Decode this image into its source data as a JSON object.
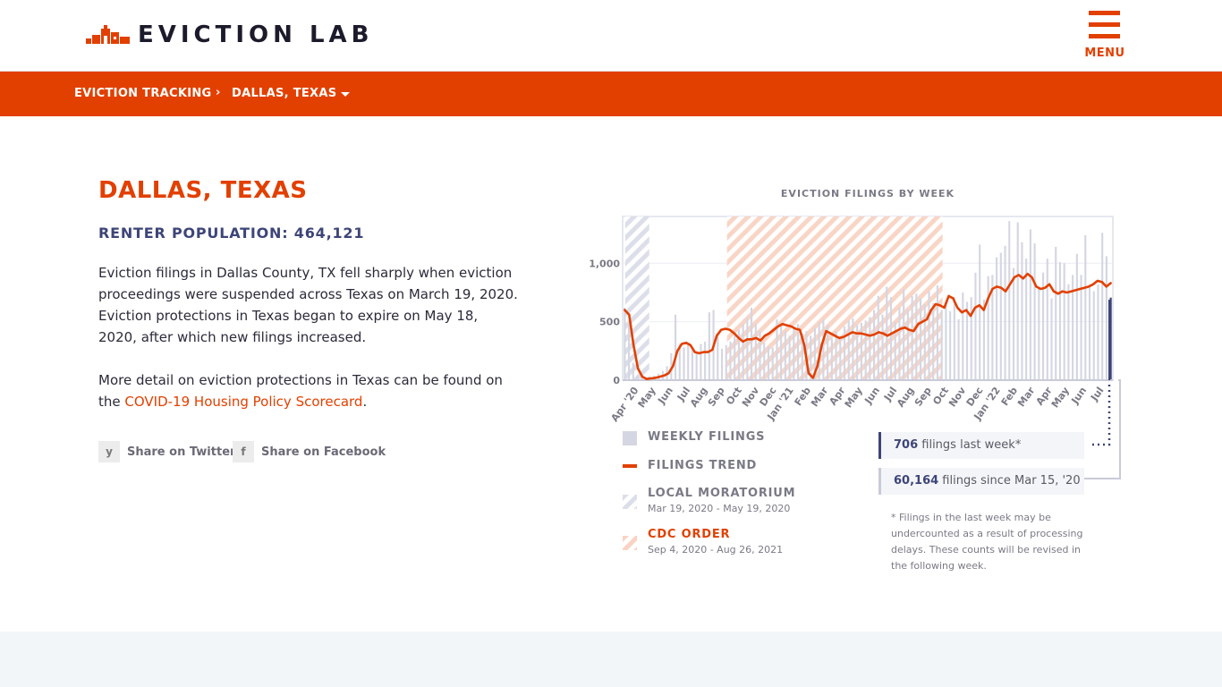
{
  "header": {
    "logo_text": "EVICTION LAB",
    "menu_label": "MENU"
  },
  "breadcrumb": {
    "root": "EVICTION TRACKING",
    "current": "DALLAS, TEXAS"
  },
  "page": {
    "title": "DALLAS, TEXAS",
    "renter_population": "RENTER POPULATION: 464,121",
    "paragraph1": "Eviction filings in Dallas County, TX fell sharply when eviction proceedings were suspended across Texas on March 19, 2020. Eviction protections in Texas began to expire on May 18, 2020, after which new filings increased.",
    "paragraph2_prefix": "More detail on eviction protections in Texas can be found on the ",
    "paragraph2_link": "COVID-19 Housing Policy Scorecard",
    "paragraph2_suffix": "."
  },
  "share": {
    "twitter_icon_glyph": "y",
    "twitter": "Share on Twitter",
    "facebook_icon_glyph": "f",
    "facebook": "Share on Facebook"
  },
  "colors": {
    "accent": "#e24000",
    "navy": "#3d4578",
    "bar": "#dcdde8",
    "cdc_hatch": "#f7c8b5",
    "moratorium_hatch": "#d6d8e6"
  },
  "chart_data": {
    "type": "bar",
    "title": "EVICTION FILINGS BY WEEK",
    "y_ticks": [
      "0",
      "500",
      "1,000"
    ],
    "ylim": [
      0,
      1400
    ],
    "x_tick_labels": [
      "Apr '20",
      "May",
      "Jun",
      "Jul",
      "Aug",
      "Sep",
      "Oct",
      "Nov",
      "Dec",
      "Jan '21",
      "Feb",
      "Mar",
      "Apr",
      "May",
      "Jun",
      "Jul",
      "Aug",
      "Sep",
      "Oct",
      "Nov",
      "Dec",
      "Jan '22",
      "Feb",
      "Mar",
      "Apr",
      "May",
      "Jun",
      "Jul"
    ],
    "series": [
      {
        "name": "WEEKLY FILINGS",
        "values": [
          620,
          480,
          150,
          40,
          25,
          20,
          30,
          40,
          55,
          80,
          120,
          230,
          560,
          310,
          280,
          300,
          260,
          240,
          310,
          330,
          580,
          600,
          380,
          270,
          300,
          330,
          380,
          430,
          480,
          530,
          620,
          480,
          420,
          320,
          290,
          280,
          520,
          480,
          420,
          380,
          450,
          480,
          400,
          420,
          380,
          450,
          490,
          520,
          470,
          360,
          420,
          380,
          460,
          510,
          530,
          470,
          490,
          510,
          540,
          600,
          720,
          560,
          800,
          710,
          500,
          620,
          780,
          600,
          720,
          740,
          700,
          650,
          760,
          660,
          810,
          600,
          670,
          590,
          710,
          520,
          750,
          670,
          710,
          920,
          1160,
          690,
          890,
          900,
          1050,
          1090,
          1150,
          1360,
          960,
          1350,
          1180,
          1040,
          1290,
          1170,
          790,
          920,
          1040,
          700,
          1140,
          1010,
          1000,
          820,
          900,
          1080,
          900,
          1240,
          820,
          760,
          820,
          1260,
          1060,
          706
        ],
        "note": "Weekly eviction filings, estimated from chart, Mar 15 2020 through Jul 2022"
      },
      {
        "name": "FILINGS TREND",
        "values": [
          600,
          560,
          300,
          100,
          30,
          10,
          15,
          20,
          30,
          40,
          60,
          120,
          250,
          310,
          320,
          300,
          240,
          230,
          240,
          240,
          260,
          380,
          430,
          440,
          430,
          400,
          360,
          330,
          350,
          350,
          360,
          340,
          380,
          400,
          430,
          460,
          480,
          470,
          460,
          440,
          430,
          300,
          60,
          20,
          120,
          300,
          420,
          400,
          380,
          360,
          370,
          390,
          410,
          400,
          400,
          390,
          380,
          390,
          410,
          400,
          380,
          400,
          420,
          440,
          450,
          430,
          420,
          480,
          500,
          520,
          600,
          650,
          640,
          620,
          720,
          700,
          620,
          580,
          600,
          550,
          620,
          640,
          600,
          700,
          780,
          800,
          790,
          760,
          820,
          880,
          900,
          870,
          910,
          880,
          800,
          780,
          790,
          820,
          760,
          740,
          760,
          750,
          760,
          770,
          780,
          790,
          800,
          820,
          850,
          840,
          800,
          830
        ]
      }
    ],
    "annotations": [
      {
        "name": "LOCAL MORATORIUM",
        "range": "Mar 19, 2020 - May 19, 2020"
      },
      {
        "name": "CDC ORDER",
        "range": "Sep 4, 2020 - Aug 26, 2021"
      }
    ],
    "legend": [
      "WEEKLY FILINGS",
      "FILINGS TREND",
      "LOCAL MORATORIUM",
      "CDC ORDER"
    ]
  },
  "stats": {
    "last_week_value": "706",
    "last_week_text": " filings last week*",
    "since_value": "60,164",
    "since_text": " filings since Mar 15, '20",
    "footnote": "* Filings in the last week may be undercounted as a result of processing delays. These counts will be revised in the following week."
  }
}
